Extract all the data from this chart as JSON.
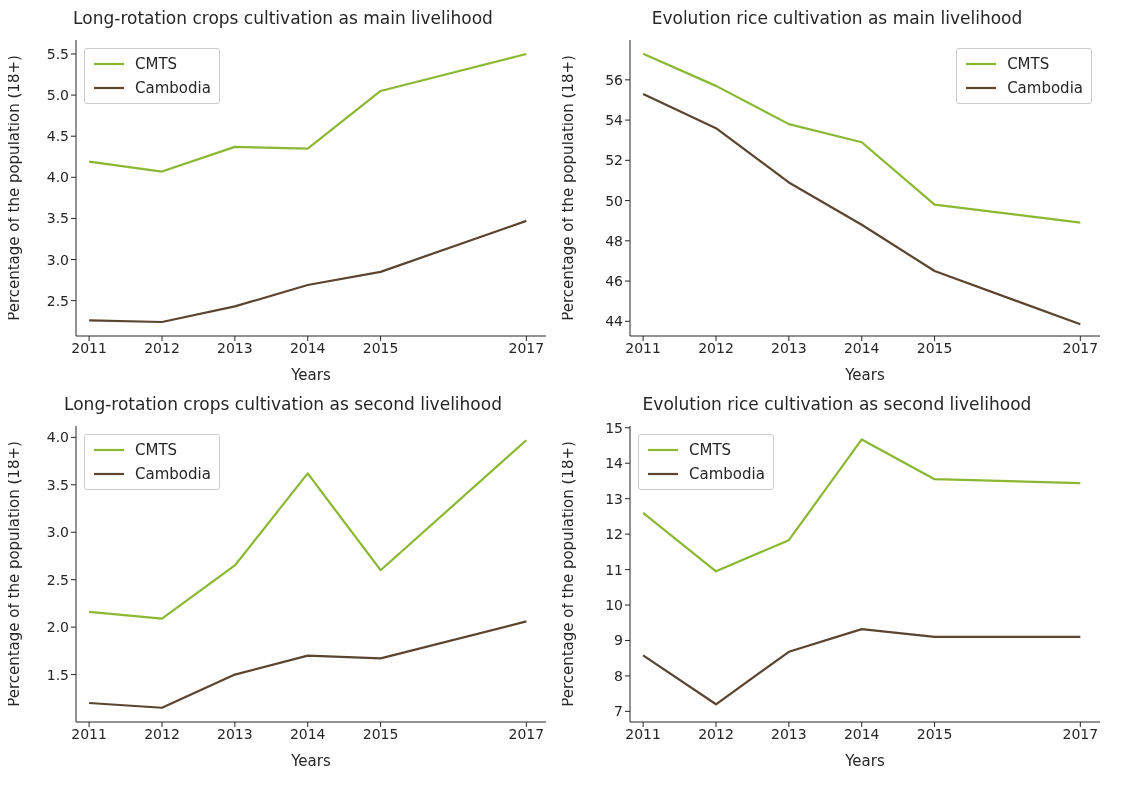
{
  "chart_data": [
    {
      "type": "line",
      "title": "Long-rotation crops cultivation as main livelihood",
      "xlabel": "Years",
      "ylabel": "Percentage of the population (18+)",
      "x": [
        2011,
        2012,
        2013,
        2014,
        2015,
        2017
      ],
      "xlim": [
        2010.82,
        2017.27
      ],
      "xticks": [
        2011,
        2012,
        2013,
        2014,
        2015,
        2017
      ],
      "ylim": [
        2.07,
        5.67
      ],
      "yticks": [
        2.5,
        {
          "value": 3,
          "label": "3.0"
        },
        3.5,
        {
          "value": 4,
          "label": "4.0"
        },
        4.5,
        {
          "value": 5,
          "label": "5.0"
        },
        5.5
      ],
      "legend": "top left",
      "grid": false,
      "series": [
        {
          "name": "CMTS",
          "color": "#8ab833",
          "values": [
            4.19,
            4.07,
            4.37,
            4.35,
            5.05,
            5.5
          ]
        },
        {
          "name": "Cambodia",
          "color": "#5b4530",
          "values": [
            2.26,
            2.24,
            2.43,
            2.69,
            2.85,
            3.47
          ]
        }
      ]
    },
    {
      "type": "line",
      "title": "Evolution rice cultivation as main livelihood",
      "xlabel": "Years",
      "ylabel": "Percentage of the population (18+)",
      "x": [
        2011,
        2012,
        2013,
        2014,
        2015,
        2017
      ],
      "xlim": [
        2010.82,
        2017.27
      ],
      "xticks": [
        2011,
        2012,
        2013,
        2014,
        2015,
        2017
      ],
      "ylim": [
        43.27,
        57.98
      ],
      "yticks": [
        44,
        46,
        48,
        50,
        52,
        54,
        56
      ],
      "legend": "top right",
      "grid": false,
      "series": [
        {
          "name": "CMTS",
          "color": "#8ab833",
          "values": [
            57.3,
            55.7,
            53.8,
            52.9,
            49.8,
            48.9
          ]
        },
        {
          "name": "Cambodia",
          "color": "#5b4530",
          "values": [
            55.3,
            53.6,
            50.9,
            48.8,
            46.5,
            43.85
          ]
        }
      ]
    },
    {
      "type": "line",
      "title": "Long-rotation crops cultivation as second livelihood",
      "xlabel": "Years",
      "ylabel": "Percentage of the population (18+)",
      "x": [
        2011,
        2012,
        2013,
        2014,
        2015,
        2017
      ],
      "xlim": [
        2010.82,
        2017.27
      ],
      "xticks": [
        2011,
        2012,
        2013,
        2014,
        2015,
        2017
      ],
      "ylim": [
        1.0,
        4.12
      ],
      "yticks": [
        1.5,
        {
          "value": 2,
          "label": "2.0"
        },
        2.5,
        {
          "value": 3,
          "label": "3.0"
        },
        3.5,
        {
          "value": 4,
          "label": "4.0"
        }
      ],
      "legend": "top left",
      "grid": false,
      "series": [
        {
          "name": "CMTS",
          "color": "#8ab833",
          "values": [
            2.16,
            2.09,
            2.65,
            3.62,
            2.6,
            3.97
          ]
        },
        {
          "name": "Cambodia",
          "color": "#5b4530",
          "values": [
            1.2,
            1.15,
            1.5,
            1.7,
            1.67,
            2.06
          ]
        }
      ]
    },
    {
      "type": "line",
      "title": "Evolution rice cultivation as second livelihood",
      "xlabel": "Years",
      "ylabel": "Percentage of the population (18+)",
      "x": [
        2011,
        2012,
        2013,
        2014,
        2015,
        2017
      ],
      "xlim": [
        2010.82,
        2017.27
      ],
      "xticks": [
        2011,
        2012,
        2013,
        2014,
        2015,
        2017
      ],
      "ylim": [
        6.7,
        15.05
      ],
      "yticks": [
        7,
        8,
        9,
        10,
        11,
        12,
        13,
        14,
        15
      ],
      "legend": "top left",
      "grid": false,
      "series": [
        {
          "name": "CMTS",
          "color": "#8ab833",
          "values": [
            12.6,
            10.95,
            11.83,
            14.67,
            13.55,
            13.44
          ]
        },
        {
          "name": "Cambodia",
          "color": "#5b4530",
          "values": [
            8.58,
            7.2,
            8.68,
            9.32,
            9.1,
            9.1
          ]
        }
      ]
    }
  ]
}
